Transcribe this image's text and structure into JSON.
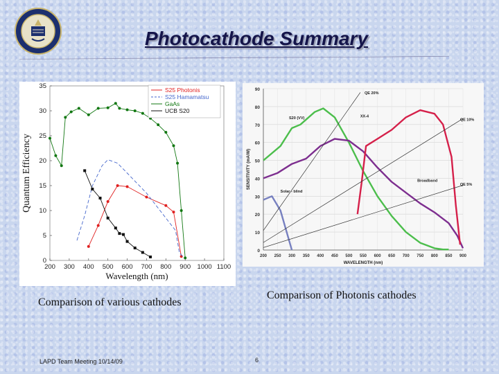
{
  "slide": {
    "title": "Photocathode Summary",
    "caption_left": "Comparison of various cathodes",
    "caption_right": "Comparison of Photonis cathodes",
    "footer": "LAPD Team Meeting 10/14/09",
    "page_number": "6"
  },
  "colors": {
    "title": "#15154a",
    "s25_photonis": "#e02020",
    "s25_hamamatsu": "#4466cc",
    "gaas": "#117711",
    "ucb_s20": "#111111",
    "green": "#4cbe4c",
    "purple": "#7d2e8f",
    "red": "#d5204a",
    "blue": "#7780c0"
  },
  "chart_data": [
    {
      "type": "line",
      "title": "",
      "xlabel": "Wavelength (nm)",
      "ylabel": "Quantum Efficiency",
      "xlim": [
        200,
        1100
      ],
      "ylim": [
        0,
        35
      ],
      "x_ticks": [
        "200",
        "300",
        "400",
        "500",
        "600",
        "700",
        "800",
        "900",
        "1000",
        "1100"
      ],
      "y_ticks": [
        "0",
        "5",
        "10",
        "15",
        "20",
        "25",
        "30",
        "35"
      ],
      "legend_position": "top-right",
      "series": [
        {
          "name": "S25 Photonis",
          "color": "#e02020",
          "style": "solid-markers",
          "x": [
            400,
            450,
            500,
            550,
            600,
            700,
            800,
            840,
            880
          ],
          "y": [
            2.8,
            7,
            11.8,
            15,
            14.8,
            12.7,
            11,
            9.7,
            0.8
          ]
        },
        {
          "name": "S25 Hamamatsu",
          "color": "#4466cc",
          "style": "dashed",
          "x": [
            340,
            380,
            420,
            470,
            500,
            550,
            600,
            650,
            700,
            800,
            850,
            870,
            900
          ],
          "y": [
            4,
            9,
            15,
            19,
            20.2,
            19.5,
            17.5,
            15.5,
            13.5,
            8.5,
            6,
            1.5,
            0.3
          ]
        },
        {
          "name": "GaAs",
          "color": "#117711",
          "style": "solid-markers",
          "x": [
            200,
            230,
            260,
            280,
            310,
            350,
            400,
            450,
            500,
            540,
            560,
            600,
            640,
            680,
            720,
            760,
            800,
            840,
            860,
            880,
            900
          ],
          "y": [
            24.5,
            21,
            19,
            28.7,
            29.8,
            30.5,
            29.2,
            30.5,
            30.6,
            31.5,
            30.5,
            30.2,
            30,
            29.5,
            28.5,
            27.2,
            25.7,
            23,
            19.5,
            10,
            0.5
          ]
        },
        {
          "name": "UCB S20",
          "color": "#111111",
          "style": "solid-markers",
          "x": [
            380,
            420,
            460,
            500,
            540,
            560,
            580,
            600,
            640,
            680,
            720
          ],
          "y": [
            18,
            14.3,
            12.5,
            8.5,
            6.5,
            5.4,
            5.2,
            3.8,
            2.5,
            1.6,
            0.7
          ]
        }
      ]
    },
    {
      "type": "line",
      "title": "",
      "xlabel": "WAVELENGTH (nm)",
      "ylabel": "SENSITIVITY (mA/W)",
      "xlim": [
        200,
        900
      ],
      "ylim": [
        0,
        90
      ],
      "x_ticks": [
        "200",
        "250",
        "300",
        "350",
        "400",
        "450",
        "500",
        "550",
        "600",
        "650",
        "700",
        "750",
        "800",
        "850",
        "900"
      ],
      "y_ticks": [
        "0",
        "10",
        "20",
        "30",
        "40",
        "50",
        "60",
        "70",
        "80",
        "90"
      ],
      "annotations": [
        "QE 20%",
        "QE 10%",
        "QE 5%",
        "S20 (VV)",
        "XX-4",
        "Broadband",
        "Solar - blind"
      ],
      "series": [
        {
          "name": "S20 (VV)",
          "color": "#4cbe4c",
          "x": [
            200,
            260,
            300,
            330,
            380,
            410,
            450,
            500,
            550,
            600,
            650,
            700,
            750,
            800,
            830,
            850
          ],
          "y": [
            50,
            58,
            68,
            70,
            77,
            79,
            74,
            60,
            44,
            30,
            19,
            10,
            4,
            1,
            0.3,
            0.3
          ]
        },
        {
          "name": "Broadband",
          "color": "#7d2e8f",
          "x": [
            200,
            250,
            300,
            350,
            400,
            450,
            500,
            550,
            600,
            650,
            700,
            750,
            800,
            850,
            880,
            900
          ],
          "y": [
            40,
            43,
            48,
            51,
            58,
            62,
            61,
            55,
            46,
            38,
            32,
            26,
            21,
            15,
            8,
            1
          ]
        },
        {
          "name": "XX-4",
          "color": "#d5204a",
          "x": [
            530,
            545,
            560,
            600,
            650,
            700,
            750,
            800,
            830,
            860,
            875,
            890
          ],
          "y": [
            20,
            38,
            58,
            62,
            67,
            74,
            78,
            76,
            70,
            52,
            25,
            3
          ]
        },
        {
          "name": "Solar - blind",
          "color": "#7780c0",
          "x": [
            200,
            230,
            260,
            280,
            300
          ],
          "y": [
            28,
            30,
            22,
            11,
            0
          ]
        },
        {
          "name": "QE 20%",
          "color": "#333333",
          "style": "thin",
          "x": [
            200,
            540
          ],
          "y": [
            10.9,
            87.9
          ]
        },
        {
          "name": "QE 10%",
          "color": "#333333",
          "style": "thin",
          "x": [
            200,
            900
          ],
          "y": [
            4.2,
            73.3
          ]
        },
        {
          "name": "QE 5%",
          "color": "#333333",
          "style": "thin",
          "x": [
            200,
            900
          ],
          "y": [
            1.4,
            36.1
          ]
        }
      ]
    }
  ]
}
